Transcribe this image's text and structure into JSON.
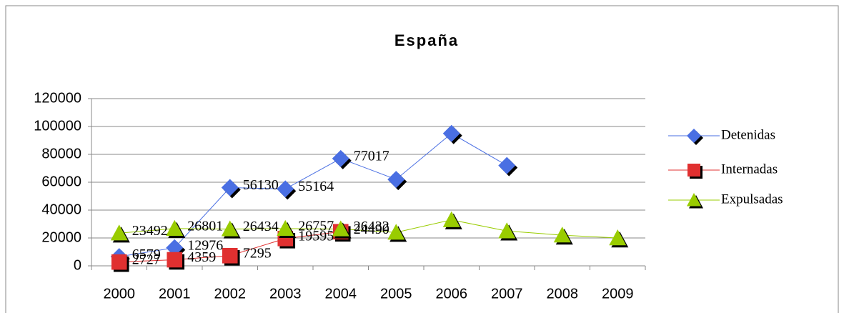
{
  "chart_data": {
    "type": "line",
    "title": "España",
    "categories": [
      "2000",
      "2001",
      "2002",
      "2003",
      "2004",
      "2005",
      "2006",
      "2007",
      "2008",
      "2009"
    ],
    "series": [
      {
        "name": "Detenidas",
        "color": "#4a6fe3",
        "marker": "diamond",
        "values": [
          6579,
          12976,
          56130,
          55164,
          77017,
          62000,
          95000,
          72000,
          null,
          null
        ],
        "value_labels": [
          "6579",
          "12976",
          "56130",
          "55164",
          "77017",
          null,
          null,
          null,
          null,
          null
        ]
      },
      {
        "name": "Internadas",
        "color": "#e03030",
        "marker": "square",
        "values": [
          2727,
          4359,
          7295,
          19595,
          24490,
          null,
          null,
          null,
          null,
          null
        ],
        "value_labels": [
          "2727",
          "4359",
          "7295",
          "19595",
          "24490",
          null,
          null,
          null,
          null,
          null
        ]
      },
      {
        "name": "Expulsadas",
        "color": "#99cc00",
        "marker": "triangle",
        "values": [
          23492,
          26801,
          26434,
          26757,
          26432,
          24000,
          33000,
          25000,
          22000,
          20000
        ],
        "value_labels": [
          "23492",
          "26801",
          "26434",
          "26757",
          "26432",
          null,
          null,
          null,
          null,
          null
        ]
      }
    ],
    "ylim": [
      0,
      120000
    ],
    "yticks": [
      0,
      20000,
      40000,
      60000,
      80000,
      100000,
      120000
    ],
    "grid": true,
    "legend": "right"
  }
}
